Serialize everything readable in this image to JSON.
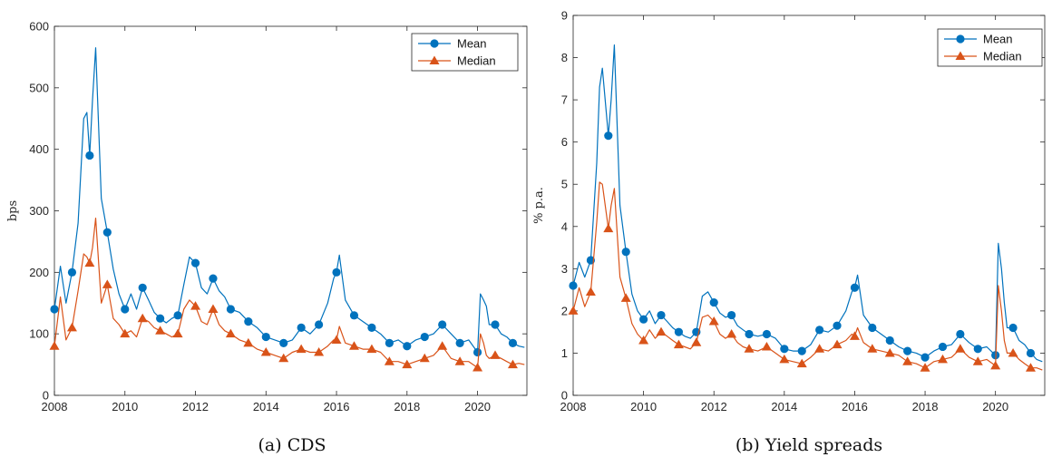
{
  "colors": {
    "mean": "#0072BD",
    "median": "#D95319"
  },
  "chart_data": [
    {
      "type": "line",
      "caption": "(a) CDS",
      "xlabel": "",
      "ylabel": "bps",
      "xlim": [
        2008,
        2021.4
      ],
      "ylim": [
        0,
        600
      ],
      "xticks": [
        2008,
        2010,
        2012,
        2014,
        2016,
        2018,
        2020
      ],
      "yticks": [
        0,
        100,
        200,
        300,
        400,
        500,
        600
      ],
      "legend": "top-right",
      "series": [
        {
          "name": "Mean",
          "marker": "circle",
          "color": "#0072BD",
          "x": [
            2008.0,
            2008.17,
            2008.33,
            2008.5,
            2008.67,
            2008.83,
            2008.92,
            2009.0,
            2009.08,
            2009.17,
            2009.33,
            2009.5,
            2009.67,
            2009.83,
            2010.0,
            2010.17,
            2010.33,
            2010.5,
            2010.67,
            2010.83,
            2011.0,
            2011.17,
            2011.33,
            2011.5,
            2011.67,
            2011.83,
            2012.0,
            2012.17,
            2012.33,
            2012.5,
            2012.67,
            2012.83,
            2013.0,
            2013.25,
            2013.5,
            2013.75,
            2014.0,
            2014.25,
            2014.5,
            2014.75,
            2015.0,
            2015.25,
            2015.5,
            2015.75,
            2015.92,
            2016.0,
            2016.08,
            2016.25,
            2016.5,
            2016.75,
            2017.0,
            2017.25,
            2017.5,
            2017.75,
            2018.0,
            2018.25,
            2018.5,
            2018.75,
            2019.0,
            2019.25,
            2019.5,
            2019.75,
            2020.0,
            2020.08,
            2020.17,
            2020.25,
            2020.33,
            2020.5,
            2020.67,
            2020.83,
            2021.0,
            2021.17,
            2021.33
          ],
          "y": [
            140,
            210,
            150,
            200,
            280,
            450,
            460,
            390,
            480,
            565,
            320,
            265,
            205,
            165,
            140,
            165,
            140,
            175,
            155,
            135,
            125,
            118,
            125,
            130,
            180,
            225,
            215,
            175,
            165,
            190,
            170,
            160,
            140,
            135,
            120,
            110,
            95,
            90,
            85,
            90,
            110,
            100,
            115,
            150,
            190,
            200,
            228,
            155,
            130,
            120,
            110,
            100,
            85,
            90,
            80,
            90,
            95,
            100,
            115,
            100,
            85,
            90,
            70,
            165,
            155,
            145,
            115,
            115,
            100,
            95,
            85,
            80,
            78
          ]
        },
        {
          "name": "Median",
          "marker": "triangle",
          "color": "#D95319",
          "x": [
            2008.0,
            2008.17,
            2008.33,
            2008.5,
            2008.67,
            2008.83,
            2008.92,
            2009.0,
            2009.08,
            2009.17,
            2009.33,
            2009.5,
            2009.67,
            2009.83,
            2010.0,
            2010.17,
            2010.33,
            2010.5,
            2010.67,
            2010.83,
            2011.0,
            2011.17,
            2011.33,
            2011.5,
            2011.67,
            2011.83,
            2012.0,
            2012.17,
            2012.33,
            2012.5,
            2012.67,
            2012.83,
            2013.0,
            2013.25,
            2013.5,
            2013.75,
            2014.0,
            2014.25,
            2014.5,
            2014.75,
            2015.0,
            2015.25,
            2015.5,
            2015.75,
            2015.92,
            2016.0,
            2016.08,
            2016.25,
            2016.5,
            2016.75,
            2017.0,
            2017.25,
            2017.5,
            2017.75,
            2018.0,
            2018.25,
            2018.5,
            2018.75,
            2019.0,
            2019.25,
            2019.5,
            2019.75,
            2020.0,
            2020.08,
            2020.17,
            2020.25,
            2020.33,
            2020.5,
            2020.67,
            2020.83,
            2021.0,
            2021.17,
            2021.33
          ],
          "y": [
            80,
            160,
            90,
            110,
            170,
            230,
            225,
            215,
            240,
            288,
            150,
            180,
            125,
            115,
            100,
            105,
            95,
            125,
            120,
            110,
            105,
            100,
            95,
            100,
            140,
            155,
            145,
            120,
            115,
            140,
            115,
            105,
            100,
            90,
            85,
            75,
            70,
            65,
            60,
            70,
            75,
            70,
            70,
            80,
            90,
            90,
            112,
            85,
            80,
            75,
            75,
            70,
            55,
            55,
            50,
            55,
            60,
            65,
            80,
            60,
            55,
            55,
            45,
            100,
            85,
            65,
            60,
            65,
            60,
            55,
            50,
            52,
            50
          ]
        }
      ]
    },
    {
      "type": "line",
      "caption": "(b) Yield spreads",
      "xlabel": "",
      "ylabel": "% p.a.",
      "xlim": [
        2008,
        2021.4
      ],
      "ylim": [
        0,
        9
      ],
      "xticks": [
        2008,
        2010,
        2012,
        2014,
        2016,
        2018,
        2020
      ],
      "yticks": [
        0,
        1,
        2,
        3,
        4,
        5,
        6,
        7,
        8,
        9
      ],
      "legend": "top-right",
      "series": [
        {
          "name": "Mean",
          "marker": "circle",
          "color": "#0072BD",
          "x": [
            2008.0,
            2008.17,
            2008.33,
            2008.5,
            2008.67,
            2008.75,
            2008.83,
            2009.0,
            2009.08,
            2009.17,
            2009.33,
            2009.5,
            2009.67,
            2009.83,
            2010.0,
            2010.17,
            2010.33,
            2010.5,
            2010.67,
            2010.83,
            2011.0,
            2011.17,
            2011.33,
            2011.5,
            2011.67,
            2011.83,
            2012.0,
            2012.17,
            2012.33,
            2012.5,
            2012.67,
            2012.83,
            2013.0,
            2013.25,
            2013.5,
            2013.75,
            2014.0,
            2014.25,
            2014.5,
            2014.75,
            2015.0,
            2015.25,
            2015.5,
            2015.75,
            2015.92,
            2016.0,
            2016.08,
            2016.25,
            2016.5,
            2016.75,
            2017.0,
            2017.25,
            2017.5,
            2017.75,
            2018.0,
            2018.25,
            2018.5,
            2018.75,
            2019.0,
            2019.25,
            2019.5,
            2019.75,
            2020.0,
            2020.08,
            2020.17,
            2020.25,
            2020.33,
            2020.5,
            2020.67,
            2020.83,
            2021.0,
            2021.17,
            2021.33
          ],
          "y": [
            2.6,
            3.15,
            2.8,
            3.2,
            5.5,
            7.3,
            7.75,
            6.15,
            7.0,
            8.3,
            4.5,
            3.4,
            2.4,
            2.0,
            1.8,
            2.0,
            1.7,
            1.9,
            1.75,
            1.6,
            1.5,
            1.4,
            1.35,
            1.5,
            2.35,
            2.45,
            2.2,
            1.95,
            1.85,
            1.9,
            1.65,
            1.55,
            1.45,
            1.4,
            1.45,
            1.35,
            1.1,
            1.05,
            1.05,
            1.2,
            1.55,
            1.5,
            1.65,
            2.0,
            2.45,
            2.55,
            2.85,
            1.9,
            1.6,
            1.45,
            1.3,
            1.15,
            1.05,
            1.0,
            0.9,
            1.05,
            1.15,
            1.2,
            1.45,
            1.25,
            1.1,
            1.15,
            0.95,
            3.6,
            3.0,
            2.2,
            1.6,
            1.6,
            1.3,
            1.2,
            1.0,
            0.85,
            0.8
          ]
        },
        {
          "name": "Median",
          "marker": "triangle",
          "color": "#D95319",
          "x": [
            2008.0,
            2008.17,
            2008.33,
            2008.5,
            2008.67,
            2008.75,
            2008.83,
            2009.0,
            2009.08,
            2009.17,
            2009.33,
            2009.5,
            2009.67,
            2009.83,
            2010.0,
            2010.17,
            2010.33,
            2010.5,
            2010.67,
            2010.83,
            2011.0,
            2011.17,
            2011.33,
            2011.5,
            2011.67,
            2011.83,
            2012.0,
            2012.17,
            2012.33,
            2012.5,
            2012.67,
            2012.83,
            2013.0,
            2013.25,
            2013.5,
            2013.75,
            2014.0,
            2014.25,
            2014.5,
            2014.75,
            2015.0,
            2015.25,
            2015.5,
            2015.75,
            2015.92,
            2016.0,
            2016.08,
            2016.25,
            2016.5,
            2016.75,
            2017.0,
            2017.25,
            2017.5,
            2017.75,
            2018.0,
            2018.25,
            2018.5,
            2018.75,
            2019.0,
            2019.25,
            2019.5,
            2019.75,
            2020.0,
            2020.08,
            2020.17,
            2020.25,
            2020.33,
            2020.5,
            2020.67,
            2020.83,
            2021.0,
            2021.17,
            2021.33
          ],
          "y": [
            2.0,
            2.55,
            2.1,
            2.45,
            4.1,
            5.05,
            5.0,
            3.95,
            4.5,
            4.9,
            2.8,
            2.3,
            1.7,
            1.45,
            1.3,
            1.55,
            1.35,
            1.5,
            1.4,
            1.3,
            1.2,
            1.15,
            1.1,
            1.25,
            1.85,
            1.9,
            1.75,
            1.45,
            1.35,
            1.45,
            1.25,
            1.15,
            1.1,
            1.05,
            1.15,
            1.0,
            0.85,
            0.8,
            0.75,
            0.9,
            1.1,
            1.05,
            1.2,
            1.3,
            1.45,
            1.4,
            1.6,
            1.25,
            1.1,
            1.05,
            1.0,
            0.95,
            0.8,
            0.75,
            0.65,
            0.8,
            0.85,
            0.9,
            1.1,
            0.9,
            0.8,
            0.85,
            0.7,
            2.6,
            2.0,
            1.3,
            1.0,
            1.0,
            0.85,
            0.75,
            0.65,
            0.65,
            0.6
          ]
        }
      ]
    }
  ]
}
